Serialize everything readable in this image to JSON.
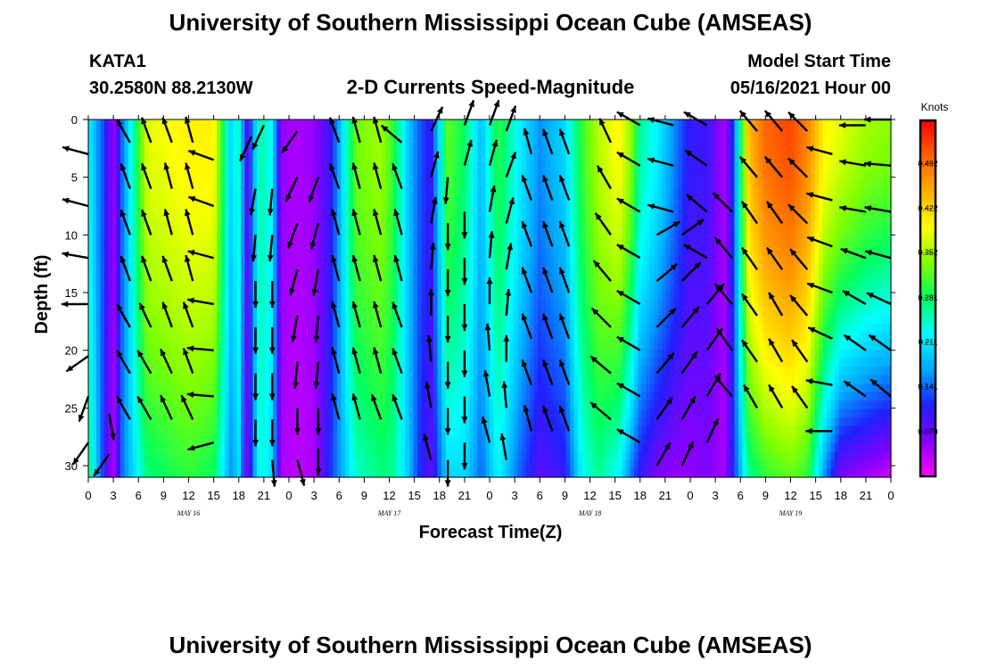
{
  "header": {
    "title": "University of Southern Mississippi Ocean Cube (AMSEAS)",
    "station": "KATA1",
    "location": "30.2580N  88.2130W",
    "subtitle": "2-D Currents Speed-Magnitude",
    "model_start_label": "Model Start Time",
    "model_start_value": "05/16/2021 Hour 00",
    "footer_title": "University of Southern Mississippi Ocean Cube (AMSEAS)"
  },
  "chart_data": {
    "type": "heatmap",
    "xlabel": "Forecast Time(Z)",
    "ylabel": "Depth (ft)",
    "xlim": [
      0,
      96
    ],
    "ylim": [
      31,
      0
    ],
    "x_ticks": [
      {
        "x": 0,
        "label": "0"
      },
      {
        "x": 3,
        "label": "3"
      },
      {
        "x": 6,
        "label": "6"
      },
      {
        "x": 9,
        "label": "9"
      },
      {
        "x": 12,
        "label": "12"
      },
      {
        "x": 15,
        "label": "15"
      },
      {
        "x": 18,
        "label": "18"
      },
      {
        "x": 21,
        "label": "21"
      },
      {
        "x": 24,
        "label": "0"
      },
      {
        "x": 27,
        "label": "3"
      },
      {
        "x": 30,
        "label": "6"
      },
      {
        "x": 33,
        "label": "9"
      },
      {
        "x": 36,
        "label": "12"
      },
      {
        "x": 39,
        "label": "15"
      },
      {
        "x": 42,
        "label": "18"
      },
      {
        "x": 45,
        "label": "21"
      },
      {
        "x": 48,
        "label": "0"
      },
      {
        "x": 51,
        "label": "3"
      },
      {
        "x": 54,
        "label": "6"
      },
      {
        "x": 57,
        "label": "9"
      },
      {
        "x": 60,
        "label": "12"
      },
      {
        "x": 63,
        "label": "15"
      },
      {
        "x": 66,
        "label": "18"
      },
      {
        "x": 69,
        "label": "21"
      },
      {
        "x": 72,
        "label": "0"
      },
      {
        "x": 75,
        "label": "3"
      },
      {
        "x": 78,
        "label": "6"
      },
      {
        "x": 81,
        "label": "9"
      },
      {
        "x": 84,
        "label": "12"
      },
      {
        "x": 87,
        "label": "15"
      },
      {
        "x": 90,
        "label": "18"
      },
      {
        "x": 93,
        "label": "21"
      },
      {
        "x": 96,
        "label": "0"
      }
    ],
    "date_labels": [
      {
        "x": 12,
        "label": "MAY 16"
      },
      {
        "x": 36,
        "label": "MAY 17"
      },
      {
        "x": 60,
        "label": "MAY 18"
      },
      {
        "x": 84,
        "label": "MAY 19"
      }
    ],
    "y_ticks": [
      0,
      5,
      10,
      15,
      20,
      25,
      30
    ],
    "colorbar": {
      "title": "Knots",
      "range": [
        0.0,
        0.56
      ],
      "tick_values": [
        0.07,
        0.141,
        0.211,
        0.281,
        0.352,
        0.422,
        0.492
      ],
      "tick_labels": [
        "0.070",
        "0.141",
        "0.211",
        "0.281",
        "0.352",
        "0.422",
        "0.492"
      ],
      "colors": [
        "#ff00ff",
        "#8800ff",
        "#2020ff",
        "#00a8ff",
        "#00ffff",
        "#00ff60",
        "#80ff00",
        "#ffff00",
        "#ffb000",
        "#ff6000",
        "#ff0000"
      ]
    },
    "speed_profile": {
      "times": [
        0,
        2,
        3,
        4,
        7,
        12,
        15,
        17,
        18,
        19,
        20.5,
        22,
        23,
        25,
        27,
        29,
        32,
        35,
        36.5,
        38,
        39.5,
        41,
        43,
        45,
        47,
        49,
        51.5,
        54,
        57,
        59,
        61,
        63.5,
        65,
        66,
        68,
        70,
        72,
        74,
        76,
        77,
        79,
        81,
        84,
        86,
        88,
        90,
        93,
        96
      ],
      "surface_knots": [
        0.22,
        0.12,
        0.04,
        0.14,
        0.38,
        0.4,
        0.4,
        0.2,
        0.24,
        0.08,
        0.26,
        0.22,
        0.05,
        0.04,
        0.05,
        0.1,
        0.33,
        0.35,
        0.3,
        0.2,
        0.14,
        0.1,
        0.32,
        0.28,
        0.18,
        0.3,
        0.22,
        0.16,
        0.2,
        0.3,
        0.36,
        0.4,
        0.34,
        0.26,
        0.22,
        0.16,
        0.1,
        0.1,
        0.04,
        0.1,
        0.44,
        0.5,
        0.52,
        0.48,
        0.4,
        0.38,
        0.35,
        0.34
      ],
      "bottom_knots": [
        0.28,
        0.1,
        0.03,
        0.14,
        0.27,
        0.3,
        0.28,
        0.16,
        0.2,
        0.06,
        0.24,
        0.2,
        0.04,
        0.03,
        0.04,
        0.12,
        0.24,
        0.27,
        0.26,
        0.2,
        0.12,
        0.08,
        0.2,
        0.2,
        0.14,
        0.22,
        0.14,
        0.08,
        0.1,
        0.22,
        0.26,
        0.22,
        0.14,
        0.1,
        0.06,
        0.05,
        0.05,
        0.06,
        0.04,
        0.1,
        0.26,
        0.3,
        0.32,
        0.3,
        0.16,
        0.06,
        0.04,
        0.02
      ]
    },
    "arrows": {
      "columns": [
        {
          "t": 0,
          "depths": [
            3,
            7.5,
            12,
            16,
            20.5,
            24,
            28
          ],
          "dir_deg": [
            285,
            285,
            280,
            270,
            235,
            200,
            215
          ]
        },
        {
          "t": 2.5,
          "depths": [
            25.5,
            29
          ],
          "dir_deg": [
            170,
            215
          ]
        },
        {
          "t": 5,
          "depths": [
            2,
            6,
            10,
            14,
            18,
            22,
            26
          ],
          "dir_deg": [
            330,
            340,
            340,
            340,
            330,
            330,
            330
          ]
        },
        {
          "t": 7.5,
          "depths": [
            2,
            6,
            10,
            14,
            18,
            22,
            26
          ],
          "dir_deg": [
            340,
            340,
            340,
            340,
            335,
            330,
            330
          ]
        },
        {
          "t": 10,
          "depths": [
            2,
            6,
            10,
            14,
            18,
            22,
            26
          ],
          "dir_deg": [
            340,
            345,
            345,
            340,
            340,
            335,
            335
          ]
        },
        {
          "t": 12.5,
          "depths": [
            2,
            6,
            10,
            14,
            18,
            22,
            26
          ],
          "dir_deg": [
            345,
            345,
            345,
            345,
            340,
            340,
            335
          ]
        },
        {
          "t": 15,
          "depths": [
            3.5,
            7.5,
            12,
            16,
            20,
            24,
            28
          ],
          "dir_deg": [
            290,
            290,
            285,
            280,
            275,
            275,
            255
          ]
        },
        {
          "t": 19.5,
          "depths": [
            1.5
          ],
          "dir_deg": [
            205
          ]
        },
        {
          "t": 20,
          "depths": [
            6,
            10,
            14,
            18,
            22,
            26
          ],
          "dir_deg": [
            190,
            185,
            180,
            180,
            180,
            180
          ]
        },
        {
          "t": 21,
          "depths": [
            0.5
          ],
          "dir_deg": [
            205
          ]
        },
        {
          "t": 22,
          "depths": [
            6,
            10,
            14,
            18,
            22,
            26,
            29.5
          ],
          "dir_deg": [
            185,
            185,
            180,
            180,
            180,
            180,
            175
          ]
        },
        {
          "t": 25,
          "depths": [
            1,
            5,
            9,
            13,
            17,
            21,
            25,
            29.5
          ],
          "dir_deg": [
            215,
            205,
            200,
            195,
            190,
            185,
            180,
            165
          ]
        },
        {
          "t": 27.5,
          "depths": [
            5,
            9,
            13,
            17,
            21,
            25,
            28.5
          ],
          "dir_deg": [
            200,
            195,
            190,
            185,
            185,
            180,
            180
          ]
        },
        {
          "t": 30,
          "depths": [
            2,
            6,
            10,
            14,
            18,
            22,
            26
          ],
          "dir_deg": [
            340,
            340,
            345,
            345,
            345,
            345,
            345
          ]
        },
        {
          "t": 32.5,
          "depths": [
            2,
            6,
            10,
            14,
            18,
            22,
            26
          ],
          "dir_deg": [
            345,
            345,
            345,
            345,
            345,
            345,
            345
          ]
        },
        {
          "t": 35,
          "depths": [
            2,
            6,
            10,
            14,
            18,
            22,
            26
          ],
          "dir_deg": [
            345,
            345,
            345,
            345,
            345,
            345,
            340
          ]
        },
        {
          "t": 37.5,
          "depths": [
            2,
            6,
            10,
            14,
            18,
            22,
            26
          ],
          "dir_deg": [
            310,
            340,
            345,
            345,
            340,
            340,
            340
          ]
        },
        {
          "t": 41,
          "depths": [
            1,
            5,
            9,
            13,
            17,
            21,
            25,
            29.5
          ],
          "dir_deg": [
            25,
            15,
            10,
            5,
            0,
            355,
            350,
            345
          ]
        },
        {
          "t": 43,
          "depths": [
            5,
            9,
            13,
            17,
            21,
            25,
            29.5
          ],
          "dir_deg": [
            185,
            180,
            180,
            180,
            180,
            180,
            180
          ]
        },
        {
          "t": 45,
          "depths": [
            0.5,
            4,
            8,
            12,
            16,
            20,
            24,
            28
          ],
          "dir_deg": [
            20,
            15,
            180,
            180,
            180,
            180,
            180,
            180
          ]
        },
        {
          "t": 48,
          "depths": [
            0.5,
            4,
            8,
            12,
            16,
            20,
            24,
            28
          ],
          "dir_deg": [
            20,
            15,
            10,
            5,
            0,
            355,
            350,
            345
          ]
        },
        {
          "t": 50,
          "depths": [
            1,
            5,
            9,
            13,
            17,
            21,
            25,
            29.5
          ],
          "dir_deg": [
            20,
            20,
            15,
            10,
            5,
            0,
            355,
            350
          ]
        },
        {
          "t": 53,
          "depths": [
            3,
            7,
            11,
            15,
            19,
            23,
            27
          ],
          "dir_deg": [
            345,
            340,
            340,
            340,
            340,
            340,
            345
          ]
        },
        {
          "t": 55.5,
          "depths": [
            3,
            7,
            11,
            15,
            19,
            23,
            27
          ],
          "dir_deg": [
            340,
            340,
            340,
            340,
            340,
            340,
            340
          ]
        },
        {
          "t": 57.5,
          "depths": [
            3,
            7,
            11,
            15,
            19,
            23,
            27
          ],
          "dir_deg": [
            340,
            340,
            340,
            340,
            340,
            340,
            340
          ]
        },
        {
          "t": 62.5,
          "depths": [
            2,
            6,
            10,
            14,
            18,
            22,
            26
          ],
          "dir_deg": [
            335,
            330,
            325,
            320,
            315,
            310,
            310
          ]
        },
        {
          "t": 66,
          "depths": [
            0.5,
            4,
            8,
            12,
            16,
            20,
            24,
            28
          ],
          "dir_deg": [
            300,
            300,
            300,
            300,
            300,
            300,
            300,
            300
          ]
        },
        {
          "t": 70,
          "depths": [
            0.5,
            4,
            8
          ],
          "dir_deg": [
            285,
            285,
            285
          ]
        },
        {
          "t": 68,
          "depths": [
            10,
            14,
            18,
            22,
            26,
            30
          ],
          "dir_deg": [
            60,
            50,
            45,
            40,
            35,
            30
          ]
        },
        {
          "t": 71,
          "depths": [
            10,
            14,
            18,
            22,
            26,
            30
          ],
          "dir_deg": [
            55,
            45,
            40,
            35,
            30,
            25
          ]
        },
        {
          "t": 74,
          "depths": [
            0.5,
            4,
            8,
            12,
            16,
            20,
            24,
            28
          ],
          "dir_deg": [
            300,
            305,
            310,
            300,
            40,
            35,
            30,
            25
          ]
        },
        {
          "t": 77,
          "depths": [
            8,
            12,
            16,
            20,
            24
          ],
          "dir_deg": [
            315,
            320,
            320,
            325,
            320
          ]
        },
        {
          "t": 80,
          "depths": [
            1,
            5,
            9,
            13,
            17,
            21,
            25
          ],
          "dir_deg": [
            320,
            320,
            325,
            325,
            325,
            325,
            330
          ]
        },
        {
          "t": 83,
          "depths": [
            1,
            5,
            9,
            13,
            17,
            21,
            25
          ],
          "dir_deg": [
            320,
            320,
            325,
            325,
            330,
            330,
            330
          ]
        },
        {
          "t": 86,
          "depths": [
            1,
            5,
            9,
            13,
            17,
            21,
            25
          ],
          "dir_deg": [
            315,
            315,
            315,
            320,
            320,
            325,
            325
          ]
        },
        {
          "t": 89,
          "depths": [
            3,
            7,
            11,
            15,
            19,
            23,
            27
          ],
          "dir_deg": [
            285,
            285,
            290,
            290,
            295,
            280,
            270
          ]
        },
        {
          "t": 93,
          "depths": [
            0.5,
            4,
            8,
            12,
            16,
            20,
            24
          ],
          "dir_deg": [
            270,
            280,
            280,
            290,
            300,
            305,
            305
          ]
        },
        {
          "t": 96,
          "depths": [
            0,
            4,
            8,
            12,
            16,
            20,
            24
          ],
          "dir_deg": [
            270,
            275,
            280,
            285,
            295,
            305,
            310
          ]
        }
      ]
    }
  }
}
